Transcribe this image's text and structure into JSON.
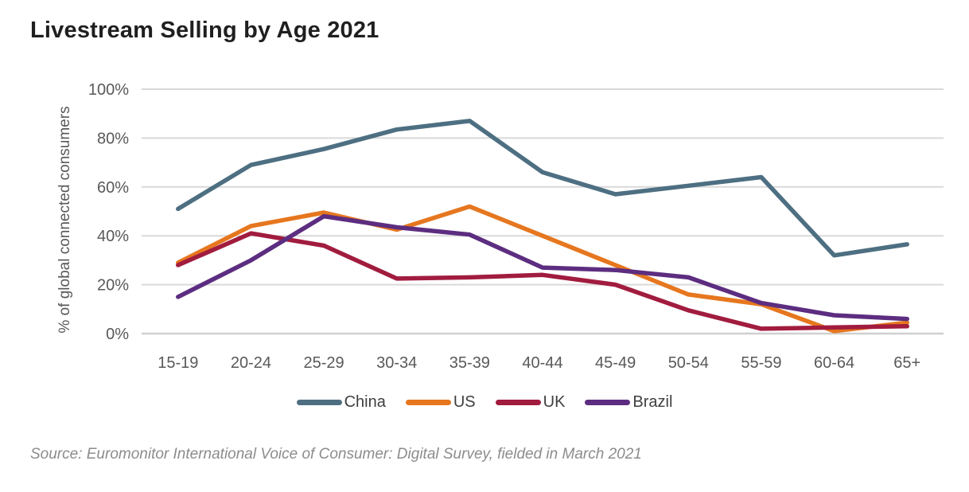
{
  "page": {
    "title": "Livestream Selling by Age 2021",
    "source": "Source: Euromonitor International Voice of Consumer: Digital Survey, fielded in March 2021"
  },
  "chart_data": {
    "type": "line",
    "title": "Livestream Selling by Age 2021",
    "xlabel": "",
    "ylabel": "% of global connected consumers",
    "categories": [
      "15-19",
      "20-24",
      "25-29",
      "30-34",
      "35-39",
      "40-44",
      "45-49",
      "50-54",
      "55-59",
      "60-64",
      "65+"
    ],
    "series": [
      {
        "name": "China",
        "color": "#4E6F82",
        "values": [
          51,
          69,
          75.5,
          83.5,
          87,
          66,
          57,
          60.5,
          64,
          32,
          36.5
        ]
      },
      {
        "name": "US",
        "color": "#E6771F",
        "values": [
          29,
          44,
          49.5,
          42.5,
          52,
          40,
          28,
          16,
          12,
          1,
          4.5
        ]
      },
      {
        "name": "UK",
        "color": "#A11C3E",
        "values": [
          28,
          41,
          36,
          22.5,
          23,
          24,
          20,
          9.5,
          2,
          2.5,
          3
        ]
      },
      {
        "name": "Brazil",
        "color": "#5C2D80",
        "values": [
          15,
          30,
          48,
          43.5,
          40.5,
          27,
          26,
          23,
          12.5,
          7.5,
          6
        ]
      }
    ],
    "ylim": [
      0,
      100
    ],
    "yticks": [
      0,
      20,
      40,
      60,
      80,
      100
    ],
    "ytick_suffix": "%",
    "grid": "horizontal",
    "legend_position": "bottom",
    "colors": {
      "grid": "#D9D9D9",
      "baseline": "#CFCFCF",
      "axis_text": "#595959",
      "legend_text": "#3F3F3F",
      "title_text": "#1F1F1F",
      "source_text": "#8C8C8C",
      "background": "#FFFFFF"
    }
  }
}
